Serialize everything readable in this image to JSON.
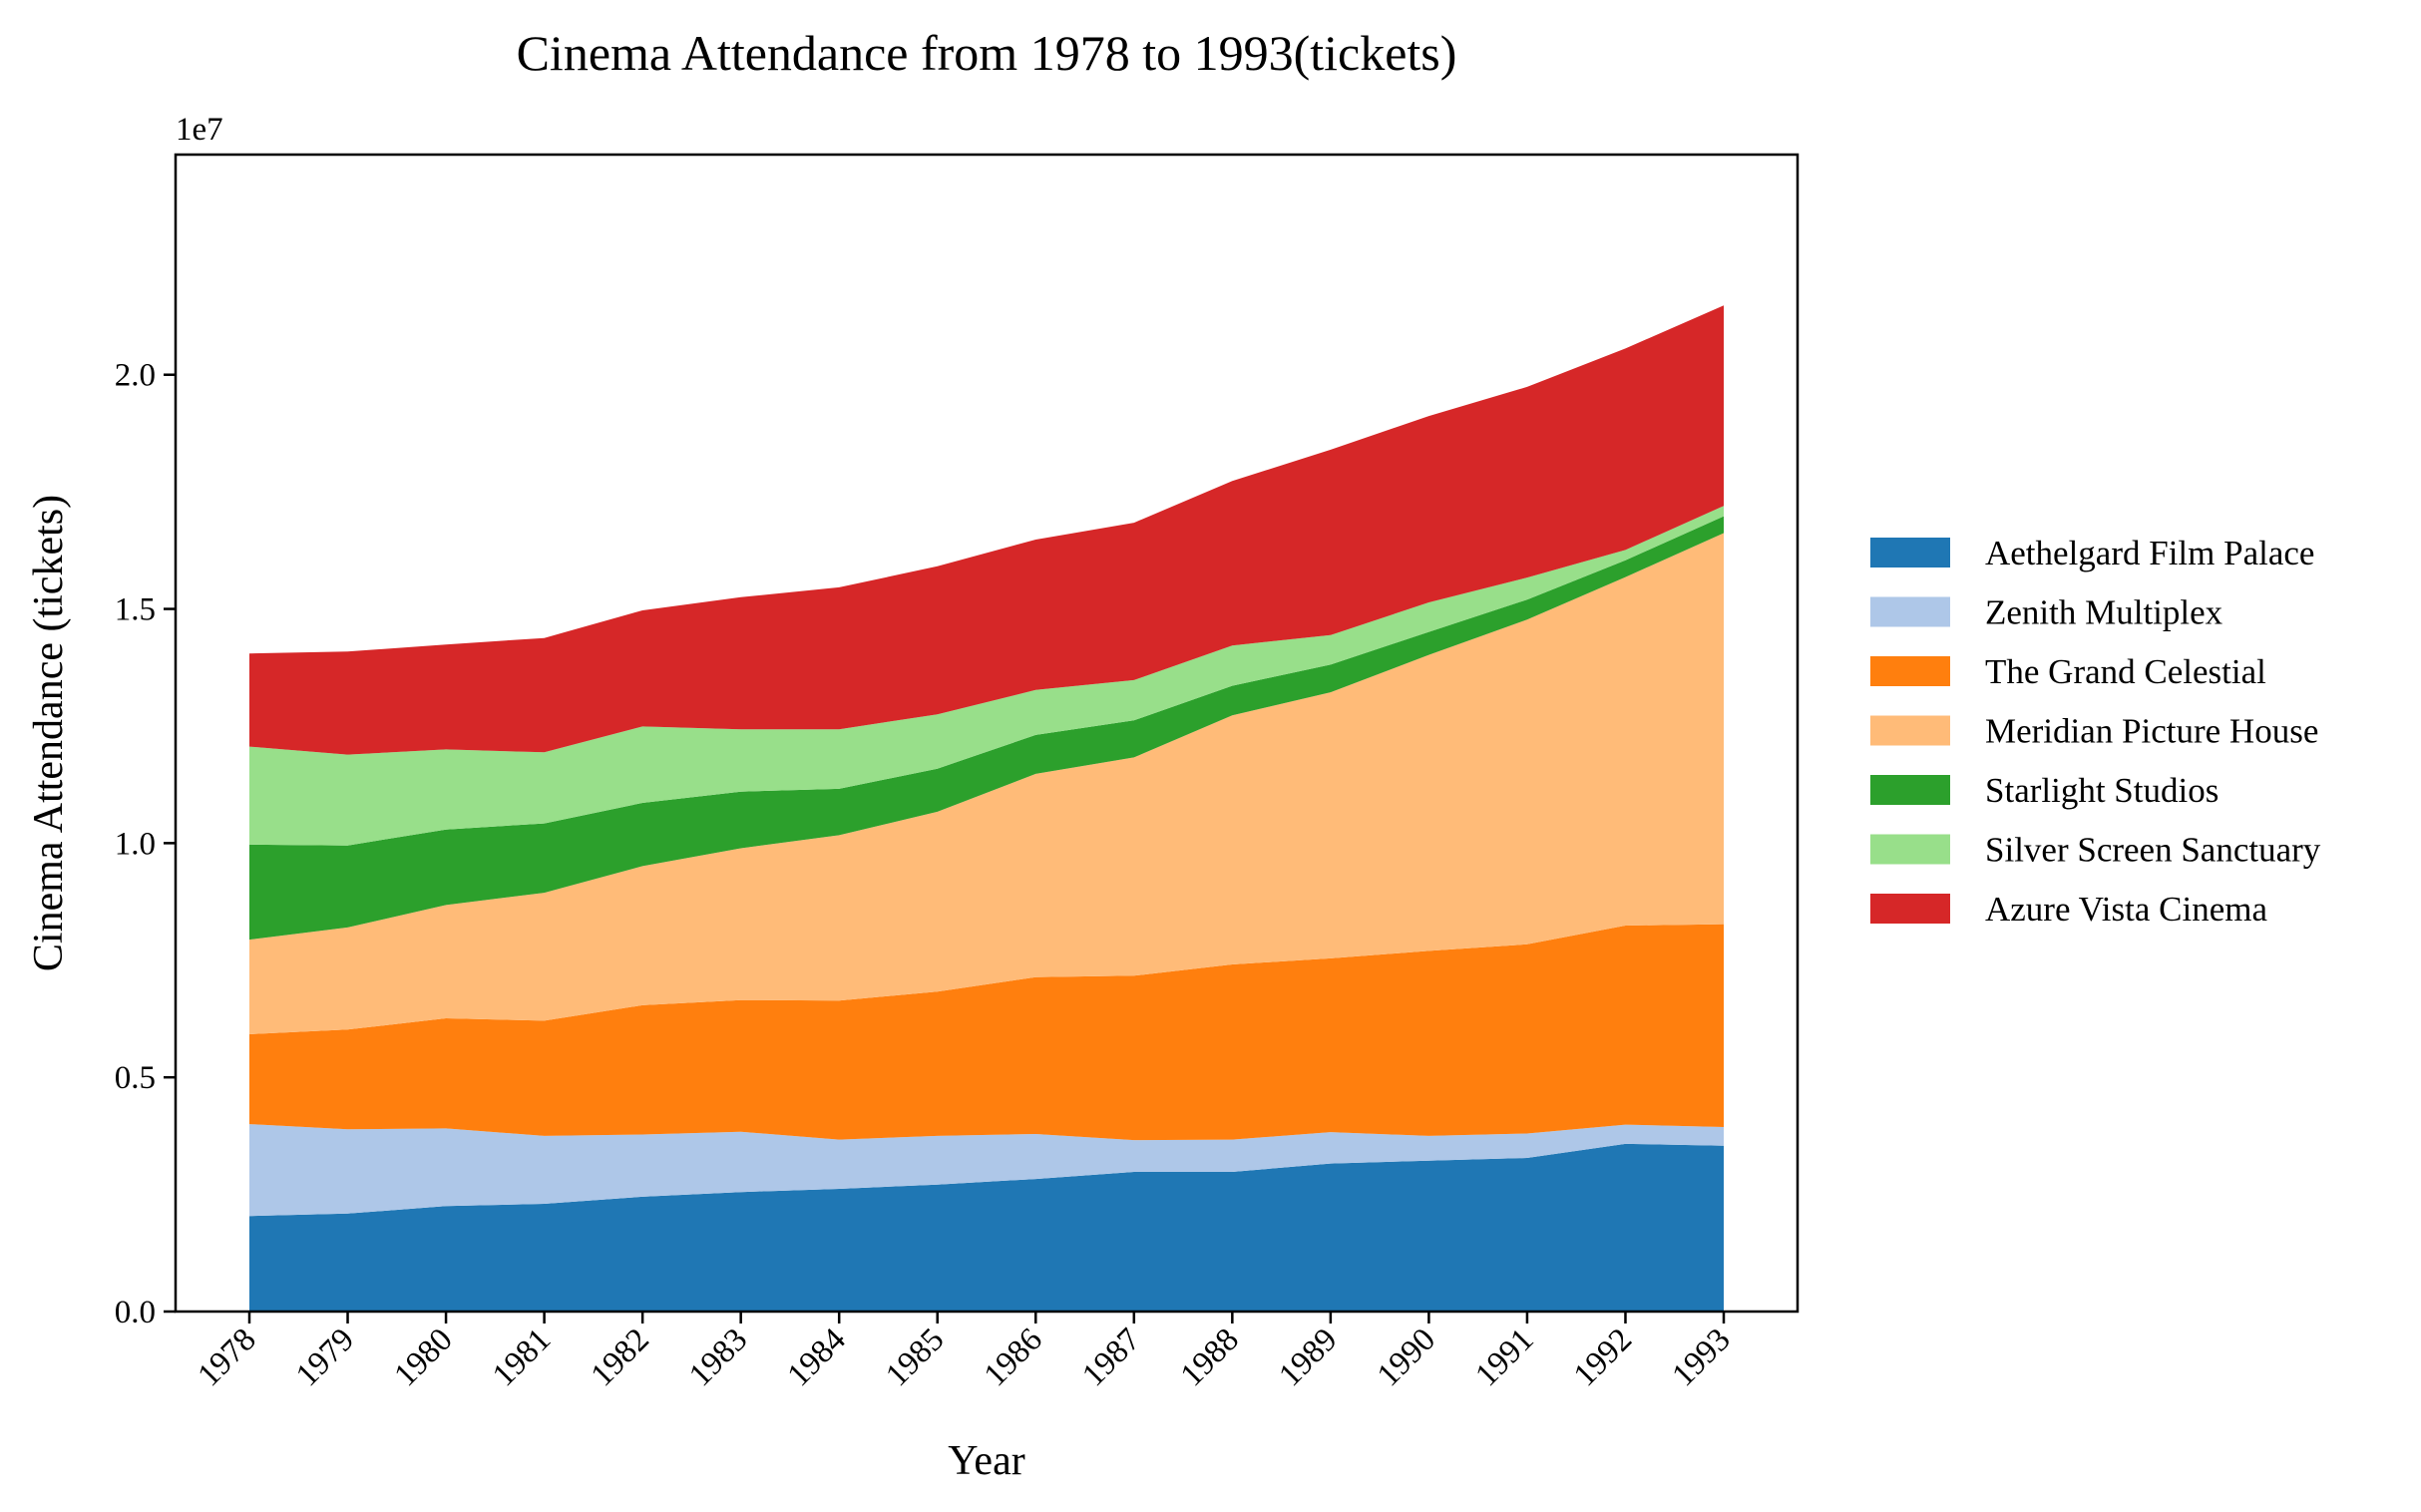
{
  "chart_data": {
    "type": "area",
    "stacked": true,
    "title": "Cinema Attendance from 1978 to 1993(tickets)",
    "xlabel": "Year",
    "ylabel": "Cinema Attendance (tickets)",
    "y_offset_label": "1e7",
    "ylim": [
      0,
      24700000
    ],
    "y_ticks": [
      0,
      5000000,
      10000000,
      15000000,
      20000000
    ],
    "y_tick_labels": [
      "0.0",
      "0.5",
      "1.0",
      "1.5",
      "2.0"
    ],
    "categories": [
      "1978",
      "1979",
      "1980",
      "1981",
      "1982",
      "1983",
      "1984",
      "1985",
      "1986",
      "1987",
      "1988",
      "1989",
      "1990",
      "1991",
      "1992",
      "1993"
    ],
    "grid": false,
    "legend_position": "right",
    "series": [
      {
        "name": "Aethelgard Film Palace",
        "color": "#1f77b4",
        "values": [
          2040000,
          2090000,
          2250000,
          2300000,
          2450000,
          2550000,
          2620000,
          2710000,
          2830000,
          2980000,
          2980000,
          3160000,
          3220000,
          3280000,
          3580000,
          3540000
        ]
      },
      {
        "name": "Zenith Multiplex",
        "color": "#aec7e8",
        "values": [
          1960000,
          1800000,
          1660000,
          1450000,
          1330000,
          1290000,
          1050000,
          1040000,
          960000,
          680000,
          690000,
          670000,
          530000,
          520000,
          410000,
          400000
        ]
      },
      {
        "name": "The Grand Celestial",
        "color": "#ff7f0e",
        "values": [
          1920000,
          2130000,
          2350000,
          2460000,
          2760000,
          2810000,
          2970000,
          3080000,
          3350000,
          3510000,
          3740000,
          3710000,
          3950000,
          4040000,
          4250000,
          4330000
        ]
      },
      {
        "name": "Meridian Picture House",
        "color": "#ffbb78",
        "values": [
          2020000,
          2180000,
          2420000,
          2730000,
          2970000,
          3240000,
          3530000,
          3840000,
          4340000,
          4660000,
          5320000,
          5680000,
          6320000,
          6930000,
          7440000,
          8350000
        ]
      },
      {
        "name": "Starlight Studios",
        "color": "#2ca02c",
        "values": [
          2030000,
          1750000,
          1610000,
          1480000,
          1350000,
          1210000,
          990000,
          920000,
          830000,
          790000,
          630000,
          590000,
          490000,
          430000,
          360000,
          360000
        ]
      },
      {
        "name": "Silver Screen Sanctuary",
        "color": "#98df8a",
        "values": [
          2090000,
          1940000,
          1710000,
          1520000,
          1630000,
          1330000,
          1270000,
          1160000,
          960000,
          860000,
          860000,
          630000,
          630000,
          470000,
          220000,
          220000
        ]
      },
      {
        "name": "Azure Vista Cinema",
        "color": "#d62728",
        "values": [
          1990000,
          2200000,
          2240000,
          2440000,
          2480000,
          2820000,
          3030000,
          3160000,
          3210000,
          3360000,
          3510000,
          3960000,
          3980000,
          4070000,
          4300000,
          4280000
        ]
      }
    ]
  }
}
